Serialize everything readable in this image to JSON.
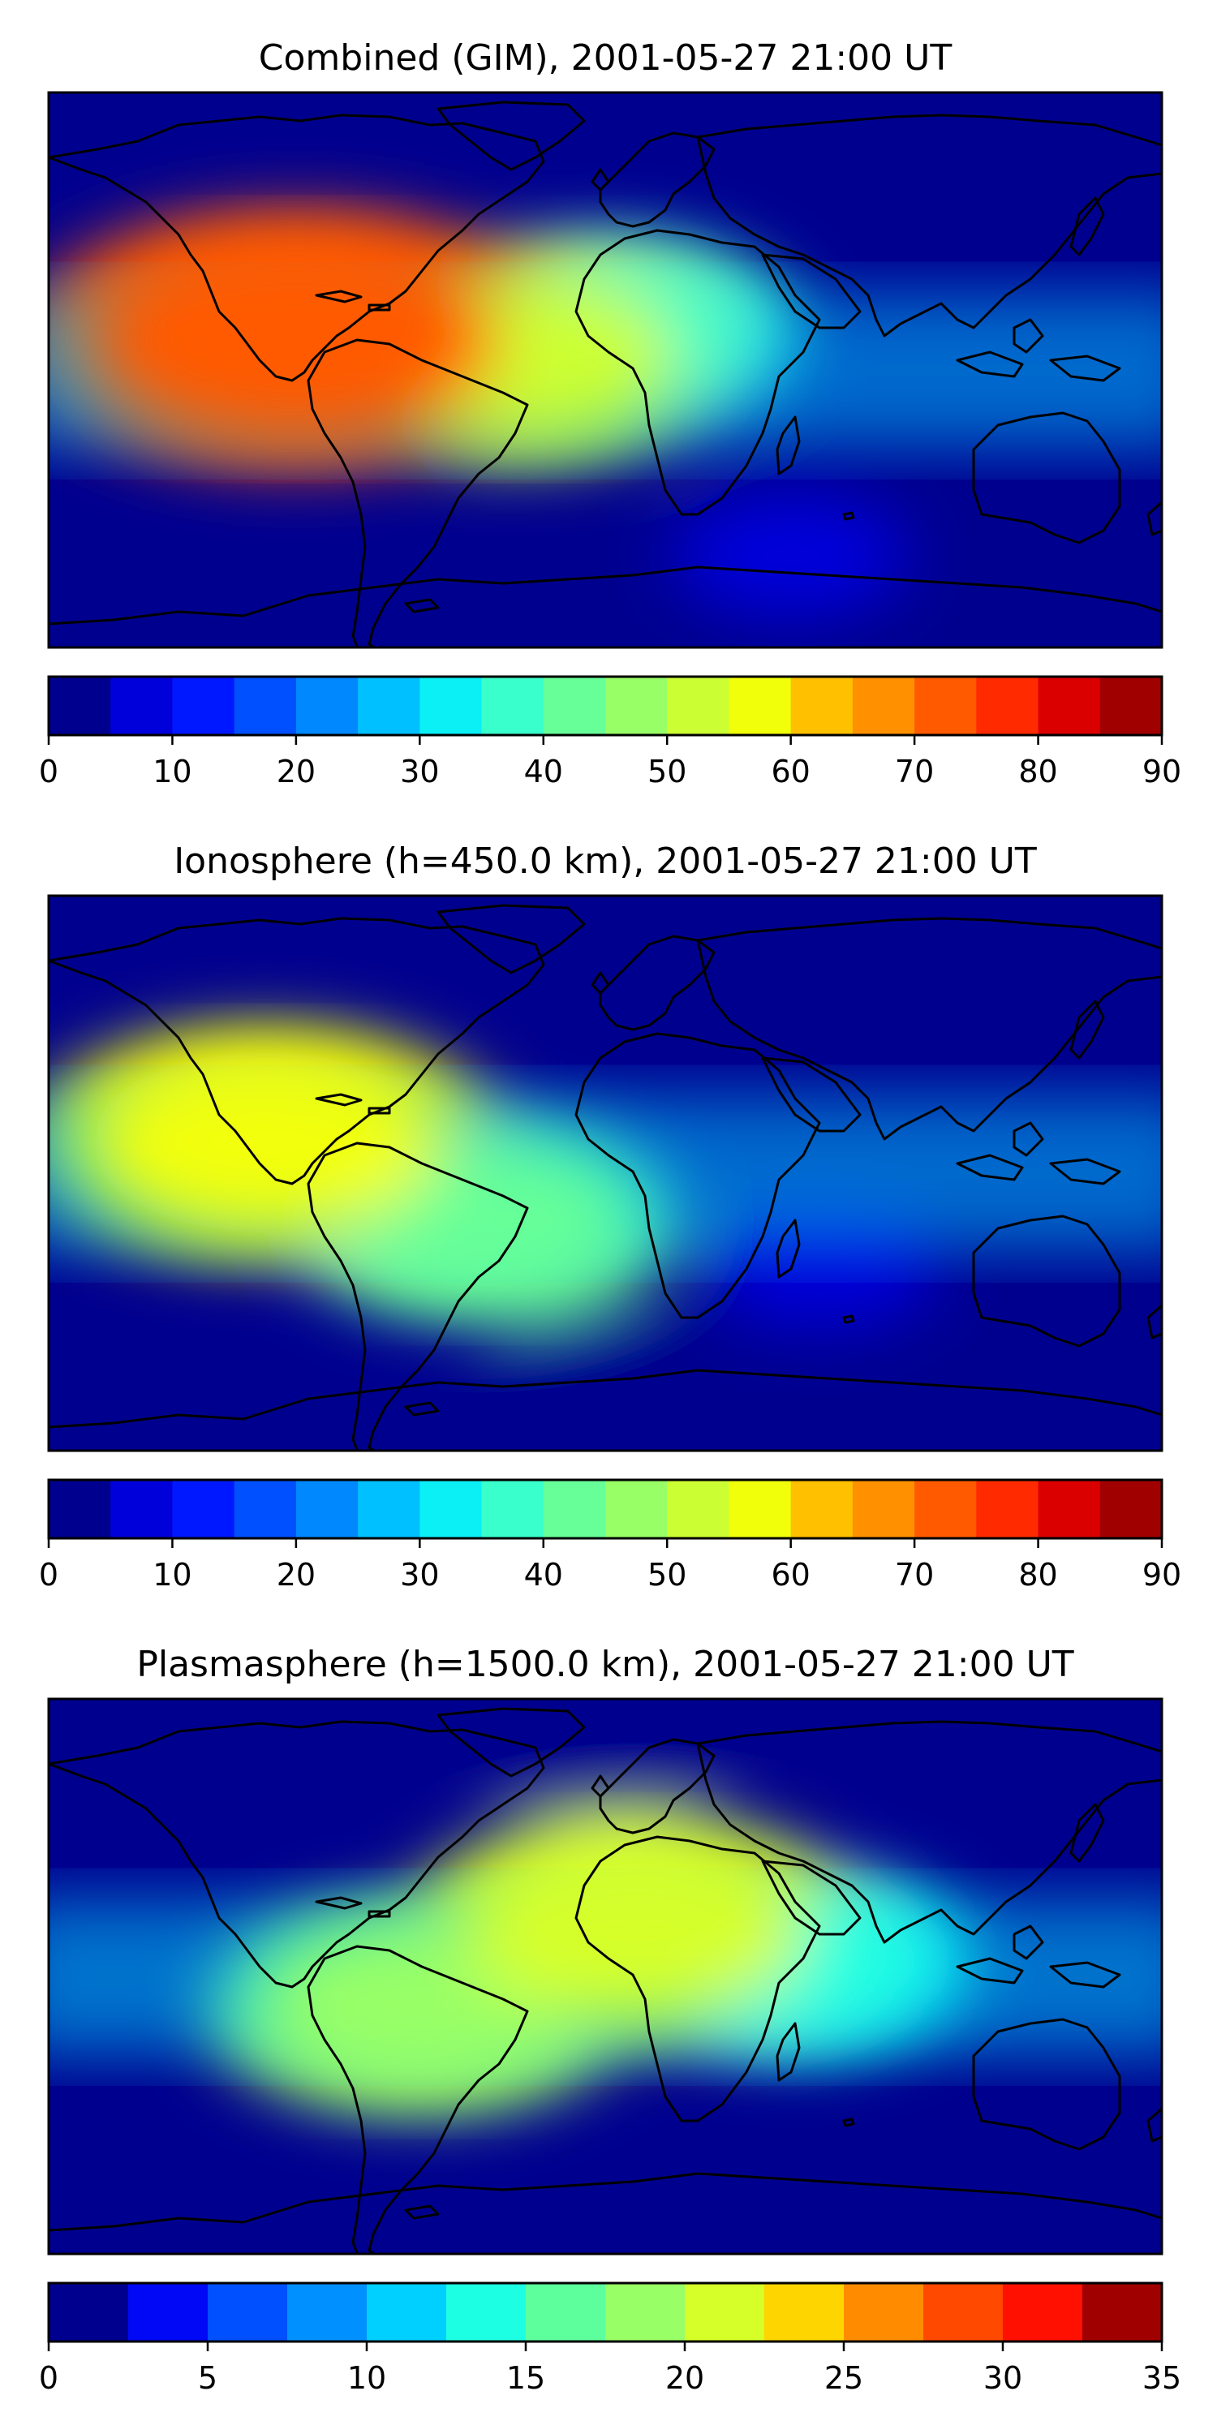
{
  "chart_data": [
    {
      "type": "heatmap",
      "title": "Combined (GIM), 2001-05-27 21:00 UT",
      "color_ticks": [
        "0",
        "10",
        "20",
        "30",
        "40",
        "50",
        "60",
        "70",
        "80",
        "90"
      ],
      "color_range": [
        0,
        90
      ],
      "color_levels": [
        0,
        5,
        10,
        15,
        20,
        25,
        30,
        35,
        40,
        45,
        50,
        55,
        60,
        65,
        70,
        75,
        80,
        85,
        90
      ],
      "features": [
        {
          "region": "eastern Pacific / Central America",
          "lon": -100,
          "lat": 10,
          "value": 72
        },
        {
          "region": "tropical Atlantic",
          "lon": -30,
          "lat": 5,
          "value": 50
        },
        {
          "region": "west Africa",
          "lon": 0,
          "lat": 12,
          "value": 38
        },
        {
          "region": "southern ocean",
          "lon": 60,
          "lat": -60,
          "value": 5
        }
      ]
    },
    {
      "type": "heatmap",
      "title": "Ionosphere  (h=450.0 km), 2001-05-27 21:00 UT",
      "color_ticks": [
        "0",
        "10",
        "20",
        "30",
        "40",
        "50",
        "60",
        "70",
        "80",
        "90"
      ],
      "color_range": [
        0,
        90
      ],
      "color_levels": [
        0,
        5,
        10,
        15,
        20,
        25,
        30,
        35,
        40,
        45,
        50,
        55,
        60,
        65,
        70,
        75,
        80,
        85,
        90
      ],
      "features": [
        {
          "region": "eastern Pacific / Mexico",
          "lon": -110,
          "lat": 10,
          "value": 56
        },
        {
          "region": "south Atlantic",
          "lon": -40,
          "lat": -15,
          "value": 40
        },
        {
          "region": "Indian Ocean",
          "lon": 70,
          "lat": -30,
          "value": 5
        },
        {
          "region": "southern ocean",
          "lon": 0,
          "lat": -65,
          "value": 3
        }
      ]
    },
    {
      "type": "heatmap",
      "title": "Plasmasphere (h=1500.0 km), 2001-05-27 21:00 UT",
      "color_ticks": [
        "0",
        "5",
        "10",
        "15",
        "20",
        "25",
        "30",
        "35"
      ],
      "color_range": [
        0,
        35
      ],
      "color_levels": [
        0,
        2.5,
        5,
        7.5,
        10,
        12.5,
        15,
        17.5,
        20,
        22.5,
        25,
        27.5,
        30,
        32.5,
        35
      ],
      "features": [
        {
          "region": "north Africa",
          "lon": 10,
          "lat": 15,
          "value": 21
        },
        {
          "region": "South America",
          "lon": -60,
          "lat": -10,
          "value": 18
        },
        {
          "region": "equatorial band",
          "lon": 60,
          "lat": 5,
          "value": 13
        },
        {
          "region": "polar regions",
          "lon": 0,
          "lat": 70,
          "value": 2
        }
      ]
    }
  ],
  "colors": [
    "#00008f",
    "#0000db",
    "#0018ff",
    "#0050ff",
    "#0088ff",
    "#00c0ff",
    "#0af0f5",
    "#38ffcc",
    "#66ff98",
    "#98ff66",
    "#ccff33",
    "#f2ff0a",
    "#ffc000",
    "#ff9000",
    "#ff5a00",
    "#ff2a00",
    "#db0000",
    "#a00000"
  ],
  "plasma_colors": [
    "#00008f",
    "#0008f5",
    "#0050ff",
    "#0090ff",
    "#00d0ff",
    "#1cffe2",
    "#5cff9c",
    "#98ff66",
    "#d6ff29",
    "#ffd500",
    "#ff8c00",
    "#ff4800",
    "#ff1000",
    "#a00000"
  ]
}
